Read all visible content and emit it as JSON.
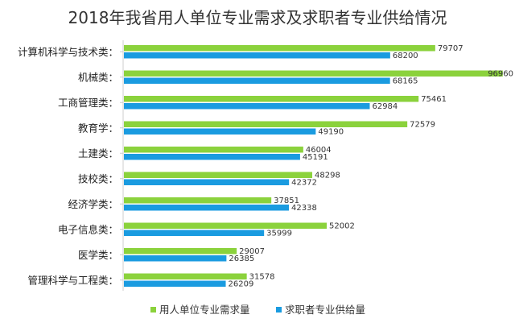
{
  "chart_data": {
    "type": "bar",
    "orientation": "horizontal",
    "title": "2018年我省用人单位专业需求及求职者专业供给情况",
    "categories": [
      "计算机科学与技术类：",
      "机械类：",
      "工商管理类：",
      "教育学：",
      "土建类：",
      "技校类：",
      "经济学类：",
      "电子信息类：",
      "医学类：",
      "管理科学与工程类："
    ],
    "series": [
      {
        "name": "用人单位专业需求量",
        "color": "#8BD23C",
        "values": [
          79707,
          96960,
          75461,
          72579,
          46004,
          48298,
          37851,
          52002,
          29007,
          31578
        ]
      },
      {
        "name": "求职者专业供给量",
        "color": "#1A9BE0",
        "values": [
          68200,
          68165,
          62984,
          49190,
          45191,
          42372,
          42338,
          35999,
          26385,
          26209
        ]
      }
    ],
    "xlim": [
      0,
      97000
    ],
    "legend_position": "bottom",
    "grid": false,
    "axis_color": "#cccccc"
  }
}
